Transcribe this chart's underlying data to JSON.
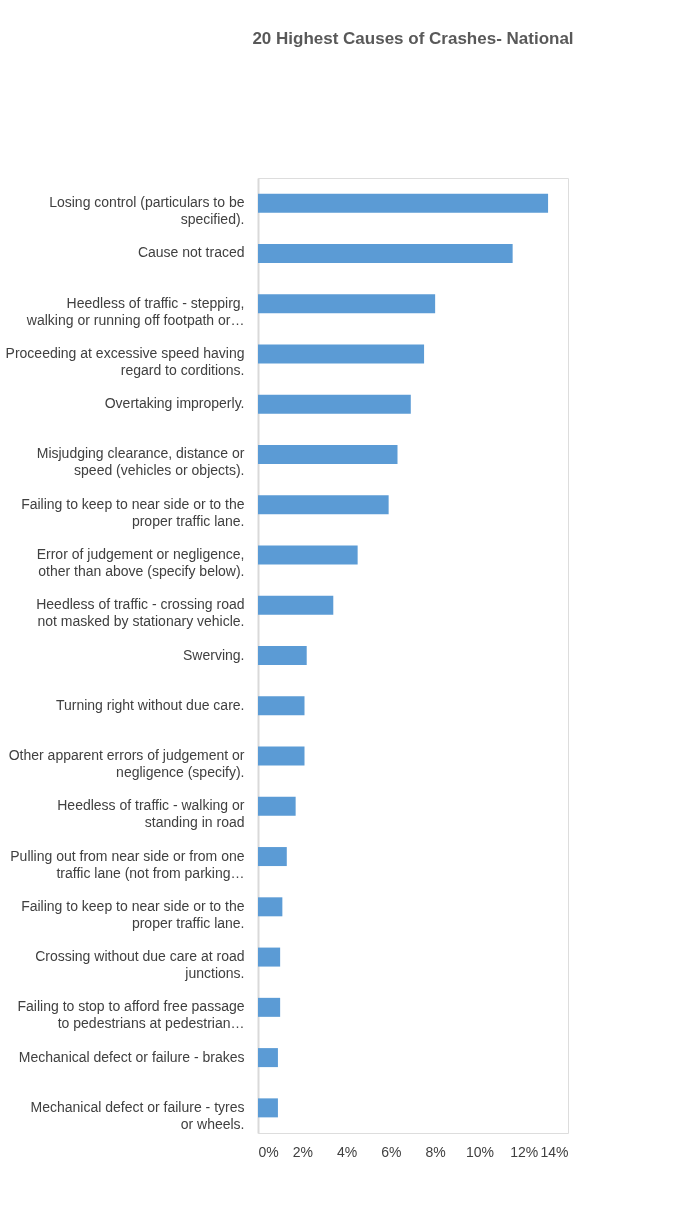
{
  "chart_data": {
    "type": "bar",
    "orientation": "horizontal",
    "title": "20 Highest Causes of Crashes- National",
    "categories": [
      "Losing control (particulars to be specified).",
      "Cause not traced",
      "Heedless of traffic - steppirg, walking or running off footpath or…",
      "Proceeding at excessive speed having regard to corditions.",
      "Overtaking improperly.",
      "Misjudging clearance, distance or speed (vehicles or objects).",
      "Failing to keep to near side or to the proper traffic lane.",
      "Error of judgement or negligence, other than above (specify below).",
      "Heedless of traffic - crossing road not masked by stationary vehicle.",
      "Swerving.",
      "Turning right without due care.",
      "Other apparent errors of judgement or negligence (specify).",
      "Heedless of traffic - walking or standing in road",
      "Pulling out from near side or from one traffic lane (not from parking…",
      "Failing to keep to near side or to the proper traffic lane.",
      "Crossing without due care at road junctions.",
      "Failing to stop to afford free passage to pedestrians at pedestrian…",
      "Mechanical defect or failure - brakes",
      "Mechanical defect or failure - tyres or wheels."
    ],
    "values": [
      13.1,
      11.5,
      8.0,
      7.5,
      6.9,
      6.3,
      5.9,
      4.5,
      3.4,
      2.2,
      2.1,
      2.1,
      1.7,
      1.3,
      1.1,
      1.0,
      1.0,
      0.9,
      0.9
    ],
    "color": "#5b9bd5",
    "xlim": [
      0,
      14
    ],
    "xticks": [
      {
        "value": 0,
        "label": "0%"
      },
      {
        "value": 2,
        "label": "2%"
      },
      {
        "value": 4,
        "label": "4%"
      },
      {
        "value": 6,
        "label": "6%"
      },
      {
        "value": 8,
        "label": "8%"
      },
      {
        "value": 10,
        "label": "10%"
      },
      {
        "value": 12,
        "label": "12%"
      },
      {
        "value": 14,
        "label": "14%"
      }
    ],
    "grid": false
  }
}
